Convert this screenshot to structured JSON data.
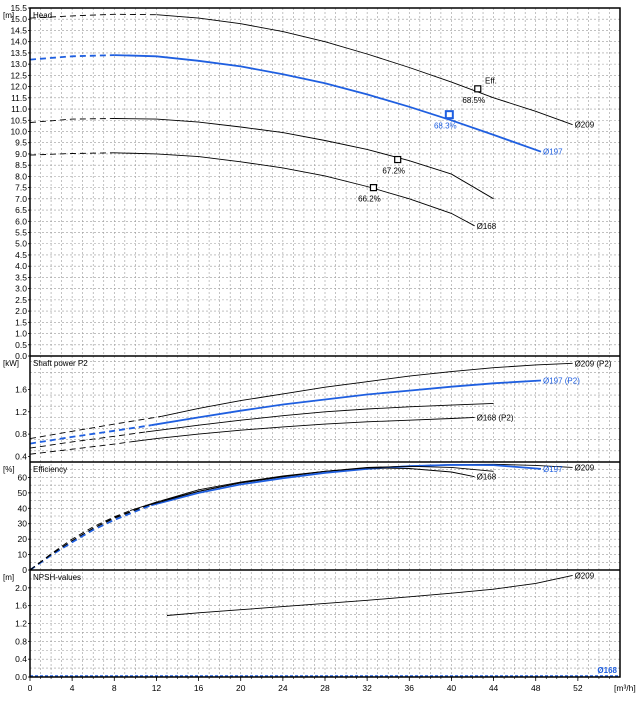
{
  "chart_data": {
    "type": "line",
    "colors": {
      "highlight": "#1f5fe0",
      "normal": "#000000",
      "grid": "#9a9a9a"
    },
    "x_axis": {
      "label": "[m³/h]",
      "ticks": [
        0,
        4,
        8,
        12,
        16,
        20,
        24,
        28,
        32,
        36,
        40,
        44,
        48,
        52
      ],
      "range": [
        0,
        56
      ]
    },
    "panels": [
      {
        "id": "head",
        "title": "Head",
        "unit": "[m]",
        "ylim": [
          0,
          15.5
        ],
        "yticks": [
          0.0,
          0.5,
          1.0,
          1.5,
          2.0,
          2.5,
          3.0,
          3.5,
          4.0,
          4.5,
          5.0,
          5.5,
          6.0,
          6.5,
          7.0,
          7.5,
          8.0,
          8.5,
          9.0,
          9.5,
          10.0,
          10.5,
          11.0,
          11.5,
          12.0,
          12.5,
          13.0,
          13.5,
          14.0,
          14.5,
          15.0,
          15.5
        ],
        "ytick_labels": [
          "0.0",
          "0.5",
          "1.0",
          "1.5",
          "2.0",
          "2.5",
          "3.0",
          "3.5",
          "4.0",
          "4.5",
          "5.0",
          "5.5",
          "6.0",
          "6.5",
          "7.0",
          "7.5",
          "8.0",
          "8.5",
          "9.0",
          "9.5",
          "10.0",
          "10.5",
          "11.0",
          "11.5",
          "12.0",
          "12.5",
          "13.0",
          "13.5",
          "14.0",
          "14.5",
          "15.0",
          "15.5"
        ],
        "series": [
          {
            "name": "Ø209",
            "highlight": false,
            "dashed_until": 12.5,
            "points": [
              [
                0,
                15.05
              ],
              [
                4,
                15.15
              ],
              [
                8,
                15.22
              ],
              [
                12,
                15.2
              ],
              [
                16,
                15.05
              ],
              [
                20,
                14.8
              ],
              [
                24,
                14.45
              ],
              [
                28,
                14.0
              ],
              [
                32,
                13.45
              ],
              [
                36,
                12.85
              ],
              [
                40,
                12.2
              ],
              [
                44,
                11.5
              ],
              [
                48,
                10.9
              ],
              [
                51.5,
                10.3
              ]
            ]
          },
          {
            "name": "Ø197",
            "highlight": true,
            "dashed_until": 11.5,
            "points": [
              [
                0,
                13.2
              ],
              [
                4,
                13.35
              ],
              [
                8,
                13.4
              ],
              [
                12,
                13.35
              ],
              [
                16,
                13.15
              ],
              [
                20,
                12.9
              ],
              [
                24,
                12.55
              ],
              [
                28,
                12.15
              ],
              [
                32,
                11.65
              ],
              [
                36,
                11.1
              ],
              [
                40,
                10.5
              ],
              [
                44,
                9.85
              ],
              [
                48.5,
                9.1
              ]
            ]
          },
          {
            "name": "",
            "highlight": false,
            "dashed_until": 11.0,
            "points": [
              [
                0,
                10.4
              ],
              [
                4,
                10.55
              ],
              [
                8,
                10.58
              ],
              [
                12,
                10.55
              ],
              [
                16,
                10.42
              ],
              [
                20,
                10.2
              ],
              [
                24,
                9.95
              ],
              [
                28,
                9.6
              ],
              [
                32,
                9.2
              ],
              [
                36,
                8.7
              ],
              [
                40,
                8.1
              ],
              [
                44,
                7.0
              ]
            ]
          },
          {
            "name": "Ø168",
            "highlight": false,
            "dashed_until": 9.5,
            "points": [
              [
                0,
                8.95
              ],
              [
                4,
                9.02
              ],
              [
                8,
                9.05
              ],
              [
                12,
                9.0
              ],
              [
                16,
                8.88
              ],
              [
                20,
                8.65
              ],
              [
                24,
                8.38
              ],
              [
                28,
                8.02
              ],
              [
                32,
                7.55
              ],
              [
                36,
                7.0
              ],
              [
                40,
                6.35
              ],
              [
                42.2,
                5.8
              ]
            ]
          }
        ],
        "markers": [
          {
            "x": 42.5,
            "y": 11.9,
            "label": "68.5%",
            "series": "Ø209",
            "highlight": false
          },
          {
            "x": 39.8,
            "y": 10.75,
            "label": "68.3%",
            "series": "Ø197",
            "highlight": true
          },
          {
            "x": 34.9,
            "y": 8.75,
            "label": "67.2%",
            "series": "",
            "highlight": false
          },
          {
            "x": 32.6,
            "y": 7.5,
            "label": "66.2%",
            "series": "Ø168",
            "highlight": false
          }
        ],
        "annotation": {
          "text": "Eff.",
          "x": 43.0,
          "y": 12.1
        }
      },
      {
        "id": "power",
        "title": "Shaft power P2",
        "unit": "[kW]",
        "ylim": [
          0.3,
          2.2
        ],
        "yticks": [
          0.4,
          0.8,
          1.2,
          1.6
        ],
        "ytick_labels": [
          "0.4",
          "0.8",
          "1.2",
          "1.6"
        ],
        "series": [
          {
            "name": "Ø209 (P2)",
            "highlight": false,
            "dashed_until": 12.5,
            "points": [
              [
                0,
                0.72
              ],
              [
                4,
                0.85
              ],
              [
                8,
                0.98
              ],
              [
                12.5,
                1.12
              ],
              [
                16,
                1.26
              ],
              [
                20,
                1.4
              ],
              [
                24,
                1.52
              ],
              [
                28,
                1.64
              ],
              [
                32,
                1.74
              ],
              [
                36,
                1.84
              ],
              [
                40,
                1.92
              ],
              [
                44,
                1.99
              ],
              [
                48,
                2.04
              ],
              [
                51.5,
                2.07
              ]
            ]
          },
          {
            "name": "Ø197 (P2)",
            "highlight": true,
            "dashed_until": 11.5,
            "points": [
              [
                0,
                0.63
              ],
              [
                4,
                0.75
              ],
              [
                8,
                0.86
              ],
              [
                11.5,
                0.96
              ],
              [
                16,
                1.1
              ],
              [
                20,
                1.22
              ],
              [
                24,
                1.33
              ],
              [
                28,
                1.42
              ],
              [
                32,
                1.51
              ],
              [
                36,
                1.58
              ],
              [
                40,
                1.65
              ],
              [
                44,
                1.71
              ],
              [
                48.5,
                1.76
              ]
            ]
          },
          {
            "name": "",
            "highlight": false,
            "dashed_until": 11.0,
            "points": [
              [
                0,
                0.55
              ],
              [
                4,
                0.66
              ],
              [
                8,
                0.76
              ],
              [
                11,
                0.84
              ],
              [
                16,
                0.96
              ],
              [
                20,
                1.05
              ],
              [
                24,
                1.13
              ],
              [
                28,
                1.2
              ],
              [
                32,
                1.25
              ],
              [
                36,
                1.29
              ],
              [
                40,
                1.32
              ],
              [
                44,
                1.35
              ]
            ]
          },
          {
            "name": "Ø168 (P2)",
            "highlight": false,
            "dashed_until": 9.5,
            "points": [
              [
                0,
                0.44
              ],
              [
                4,
                0.53
              ],
              [
                8,
                0.62
              ],
              [
                9.5,
                0.66
              ],
              [
                12,
                0.72
              ],
              [
                16,
                0.8
              ],
              [
                20,
                0.87
              ],
              [
                24,
                0.93
              ],
              [
                28,
                0.98
              ],
              [
                32,
                1.02
              ],
              [
                36,
                1.05
              ],
              [
                40,
                1.08
              ],
              [
                42.2,
                1.1
              ]
            ]
          }
        ]
      },
      {
        "id": "efficiency",
        "title": "Efficiency",
        "unit": "[%]",
        "ylim": [
          0,
          70
        ],
        "yticks": [
          0,
          10,
          20,
          30,
          40,
          50,
          60
        ],
        "ytick_labels": [
          "0",
          "10",
          "20",
          "30",
          "40",
          "50",
          "60"
        ],
        "series": [
          {
            "name": "Ø209",
            "highlight": false,
            "dashed_until": 12.5,
            "points": [
              [
                0,
                0
              ],
              [
                2,
                10
              ],
              [
                4,
                19
              ],
              [
                6,
                27
              ],
              [
                8,
                34
              ],
              [
                10,
                39
              ],
              [
                12.5,
                45
              ],
              [
                16,
                52
              ],
              [
                20,
                57
              ],
              [
                24,
                61
              ],
              [
                28,
                64
              ],
              [
                32,
                66
              ],
              [
                36,
                67.5
              ],
              [
                40,
                68.3
              ],
              [
                44,
                68.5
              ],
              [
                48,
                67.8
              ],
              [
                51.5,
                66.5
              ]
            ]
          },
          {
            "name": "Ø197",
            "highlight": true,
            "dashed_until": 11.5,
            "points": [
              [
                0,
                0
              ],
              [
                2,
                9.5
              ],
              [
                4,
                18
              ],
              [
                6,
                26
              ],
              [
                8,
                32.5
              ],
              [
                10,
                38
              ],
              [
                11.5,
                42
              ],
              [
                16,
                50
              ],
              [
                20,
                55.5
              ],
              [
                24,
                59.5
              ],
              [
                28,
                63
              ],
              [
                32,
                65.5
              ],
              [
                36,
                67.3
              ],
              [
                40,
                68.1
              ],
              [
                44,
                68.0
              ],
              [
                48.5,
                65.5
              ]
            ]
          },
          {
            "name": "",
            "highlight": false,
            "dashed_until": 11.0,
            "points": [
              [
                0,
                0
              ],
              [
                2,
                10
              ],
              [
                4,
                19
              ],
              [
                6,
                27
              ],
              [
                8,
                33.5
              ],
              [
                11,
                41.5
              ],
              [
                16,
                51
              ],
              [
                20,
                56.5
              ],
              [
                24,
                60.5
              ],
              [
                28,
                64
              ],
              [
                32,
                66.5
              ],
              [
                36,
                67.2
              ],
              [
                40,
                66.5
              ],
              [
                44,
                64.0
              ]
            ]
          },
          {
            "name": "Ø168",
            "highlight": false,
            "dashed_until": 9.5,
            "points": [
              [
                0,
                0
              ],
              [
                2,
                10.5
              ],
              [
                4,
                20
              ],
              [
                6,
                28
              ],
              [
                8,
                34.5
              ],
              [
                9.5,
                38.5
              ],
              [
                12,
                44
              ],
              [
                16,
                51
              ],
              [
                20,
                56.5
              ],
              [
                24,
                60.5
              ],
              [
                28,
                64
              ],
              [
                32,
                66.2
              ],
              [
                36,
                65.8
              ],
              [
                40,
                63.5
              ],
              [
                42.2,
                60.5
              ]
            ]
          }
        ]
      },
      {
        "id": "npsh",
        "title": "NPSH-values",
        "unit": "[m]",
        "ylim": [
          0,
          2.4
        ],
        "yticks": [
          0.0,
          0.4,
          0.8,
          1.2,
          1.6,
          2.0
        ],
        "ytick_labels": [
          "0.0",
          "0.4",
          "0.8",
          "1.2",
          "1.6",
          "2.0"
        ],
        "series": [
          {
            "name": "Ø209",
            "highlight": false,
            "dashed_until": 0,
            "points": [
              [
                13,
                1.38
              ],
              [
                16,
                1.44
              ],
              [
                20,
                1.51
              ],
              [
                24,
                1.58
              ],
              [
                28,
                1.65
              ],
              [
                32,
                1.72
              ],
              [
                36,
                1.8
              ],
              [
                40,
                1.88
              ],
              [
                44,
                1.97
              ],
              [
                48,
                2.1
              ],
              [
                51.5,
                2.28
              ]
            ]
          }
        ]
      }
    ],
    "footer_label": "Ø168"
  }
}
